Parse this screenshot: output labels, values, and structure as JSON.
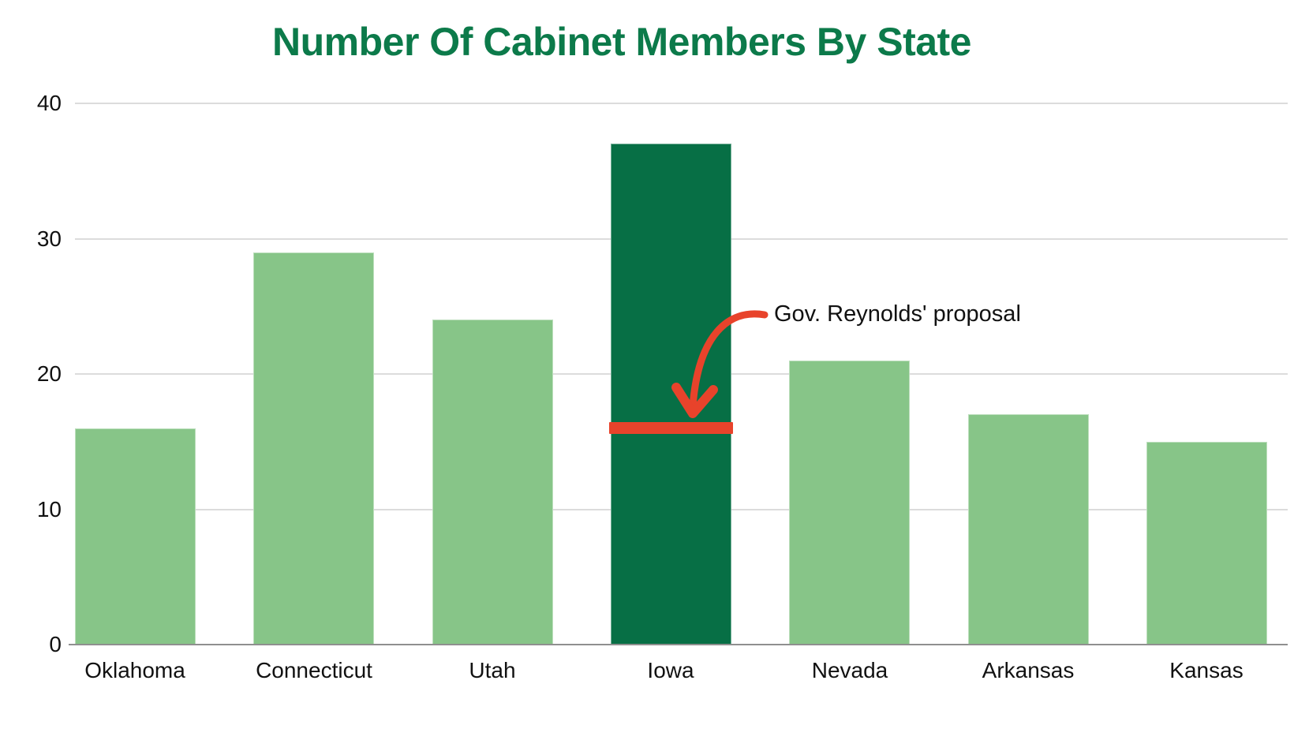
{
  "title": "Number Of Cabinet Members By State",
  "colors": {
    "title_green": "#0C7A4A",
    "bar_light_green": "#87C588",
    "bar_dark_green": "#076F45",
    "annotation_red": "#E8432B",
    "gridline_gray": "#DCDCDC",
    "axis_gray": "#8F8F8F",
    "text_black": "#111111"
  },
  "chart_data": {
    "type": "bar",
    "title": "Number Of Cabinet Members By State",
    "categories": [
      "Oklahoma",
      "Connecticut",
      "Utah",
      "Iowa",
      "Nevada",
      "Arkansas",
      "Kansas"
    ],
    "values": [
      16,
      29,
      24,
      37,
      21,
      17,
      15
    ],
    "xlabel": "",
    "ylabel": "",
    "ylim": [
      0,
      40
    ],
    "yticks": [
      0,
      10,
      20,
      30,
      40
    ],
    "grid": true,
    "legend": "none",
    "bar_color": "#87C588",
    "highlight_category": "Iowa",
    "highlight_color": "#076F45",
    "annotation": {
      "label": "Gov. Reynolds' proposal",
      "value": 16,
      "target_category": "Iowa",
      "line_color": "#E8432B",
      "arrow_color": "#E8432B",
      "text_color": "#111111"
    }
  }
}
